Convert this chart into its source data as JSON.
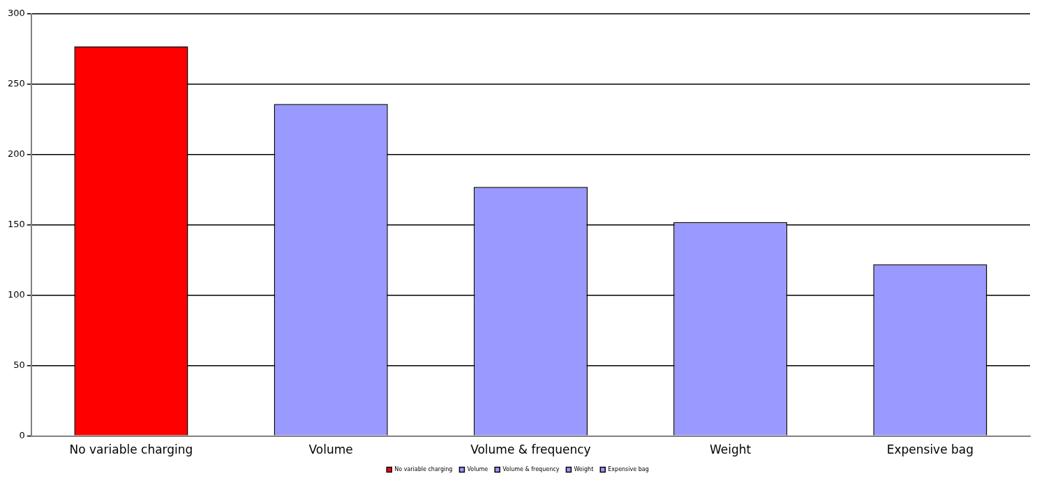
{
  "chart_data": {
    "type": "bar",
    "categories": [
      "No variable charging",
      "Volume",
      "Volume & frequency",
      "Weight",
      "Expensive bag"
    ],
    "series": [
      {
        "name": "No variable charging",
        "color": "#ff0000",
        "values": [
          277,
          null,
          null,
          null,
          null
        ]
      },
      {
        "name": "Volume",
        "color": "#9999ff",
        "values": [
          null,
          236,
          null,
          null,
          null
        ]
      },
      {
        "name": "Volume & frequency",
        "color": "#9999ff",
        "values": [
          null,
          null,
          177,
          null,
          null
        ]
      },
      {
        "name": "Weight",
        "color": "#9999ff",
        "values": [
          null,
          null,
          null,
          152,
          null
        ]
      },
      {
        "name": "Expensive bag",
        "color": "#9999ff",
        "values": [
          null,
          null,
          null,
          null,
          122
        ]
      }
    ],
    "ylim": [
      0,
      300
    ],
    "yticks": [
      0,
      50,
      100,
      150,
      200,
      250,
      300
    ],
    "grid": "y",
    "legend": "bottom"
  }
}
